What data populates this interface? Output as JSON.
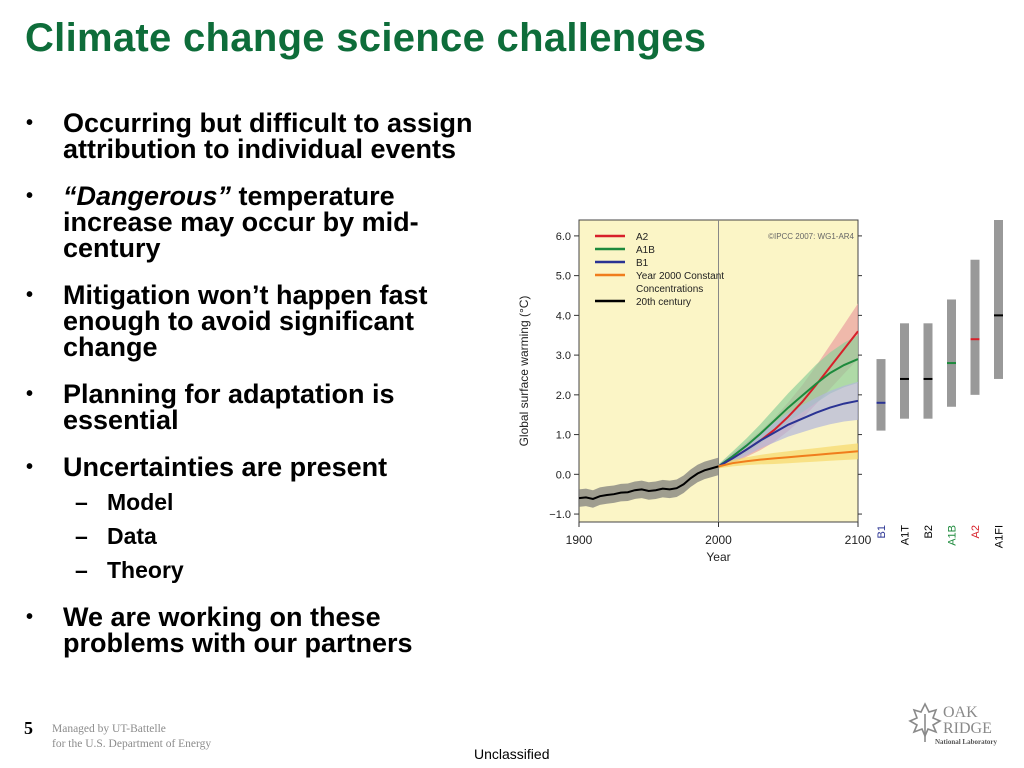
{
  "slide": {
    "title": "Climate change science challenges",
    "bullets": [
      {
        "lines": [
          "Occurring but difficult to assign",
          "attribution to  individual events"
        ]
      },
      {
        "emph": "“Dangerous”",
        "lines": [
          " temperature",
          "increase may occur by mid-",
          "century"
        ]
      },
      {
        "lines": [
          "Mitigation won’t happen fast",
          "enough to avoid significant",
          "change"
        ]
      },
      {
        "lines": [
          "Planning for adaptation is",
          "essential"
        ]
      },
      {
        "lines": [
          "Uncertainties are present"
        ]
      },
      {
        "lines": [
          "We are working on these",
          "problems with our partners"
        ]
      }
    ],
    "sub_bullets": [
      "Model",
      "Data",
      "Theory"
    ],
    "bullet_glyph": "•",
    "dash_glyph": "–"
  },
  "footer": {
    "page_number": "5",
    "managed_line1": "Managed by UT-Battelle",
    "managed_line2": "for the U.S. Department of Energy",
    "classification": "Unclassified",
    "logo_text_oak": "OAK",
    "logo_text_ridge": "RIDGE",
    "logo_text_lab": "National Laboratory"
  },
  "chart_data": {
    "type": "line",
    "xlabel": "Year",
    "ylabel": "Global surface warming (°C)",
    "xlim": [
      1900,
      2100
    ],
    "ylim": [
      -1.2,
      6.4
    ],
    "xticks": [
      1900,
      2000,
      2100
    ],
    "yticks": [
      -1.0,
      0.0,
      1.0,
      2.0,
      3.0,
      4.0,
      5.0,
      6.0
    ],
    "ytick_labels": [
      "−1.0",
      "0.0",
      "1.0",
      "2.0",
      "3.0",
      "4.0",
      "5.0",
      "6.0"
    ],
    "credit": "©IPCC  2007: WG1-AR4",
    "background": "#fbf5c6",
    "vline_year": 2000,
    "legend": [
      {
        "name": "A2",
        "color": "#d7202a"
      },
      {
        "name": "A1B",
        "color": "#1d8a3c"
      },
      {
        "name": "B1",
        "color": "#2a3393"
      },
      {
        "name": "Year 2000 Constant Concentrations",
        "label_lines": [
          "Year 2000 Constant",
          "Concentrations"
        ],
        "color": "#f07d1c"
      },
      {
        "name": "20th century",
        "color": "#000000"
      }
    ],
    "series": [
      {
        "name": "20th century",
        "color": "#000000",
        "band": "#777777",
        "x": [
          1900,
          1905,
          1910,
          1915,
          1920,
          1925,
          1930,
          1935,
          1940,
          1945,
          1950,
          1955,
          1960,
          1965,
          1970,
          1975,
          1980,
          1985,
          1990,
          1995,
          2000
        ],
        "y": [
          -0.6,
          -0.58,
          -0.62,
          -0.55,
          -0.52,
          -0.5,
          -0.46,
          -0.45,
          -0.4,
          -0.38,
          -0.42,
          -0.4,
          -0.36,
          -0.38,
          -0.35,
          -0.25,
          -0.1,
          0.02,
          0.1,
          0.15,
          0.2
        ],
        "spread": 0.22
      },
      {
        "name": "A2",
        "color": "#d7202a",
        "band": "#eaa0a0",
        "x": [
          2000,
          2010,
          2020,
          2030,
          2040,
          2050,
          2060,
          2070,
          2080,
          2090,
          2100
        ],
        "y": [
          0.2,
          0.4,
          0.62,
          0.85,
          1.12,
          1.45,
          1.82,
          2.25,
          2.7,
          3.15,
          3.6
        ],
        "spread": [
          0.05,
          0.12,
          0.18,
          0.24,
          0.3,
          0.36,
          0.42,
          0.48,
          0.55,
          0.62,
          0.7
        ]
      },
      {
        "name": "A1B",
        "color": "#1d8a3c",
        "band": "#8fcf9a",
        "x": [
          2000,
          2010,
          2020,
          2030,
          2040,
          2050,
          2060,
          2070,
          2080,
          2090,
          2100
        ],
        "y": [
          0.2,
          0.45,
          0.72,
          1.02,
          1.35,
          1.68,
          1.98,
          2.28,
          2.55,
          2.75,
          2.9
        ],
        "spread": [
          0.05,
          0.12,
          0.18,
          0.24,
          0.3,
          0.36,
          0.42,
          0.48,
          0.52,
          0.56,
          0.6
        ]
      },
      {
        "name": "B1",
        "color": "#2a3393",
        "band": "#b2b7dc",
        "x": [
          2000,
          2010,
          2020,
          2030,
          2040,
          2050,
          2060,
          2070,
          2080,
          2090,
          2100
        ],
        "y": [
          0.2,
          0.4,
          0.62,
          0.85,
          1.05,
          1.25,
          1.4,
          1.55,
          1.68,
          1.78,
          1.85
        ],
        "spread": [
          0.05,
          0.1,
          0.15,
          0.2,
          0.25,
          0.3,
          0.34,
          0.38,
          0.42,
          0.45,
          0.48
        ]
      },
      {
        "name": "Year 2000 Constant Concentrations",
        "color": "#f07d1c",
        "band": "#f6d86a",
        "x": [
          2000,
          2010,
          2020,
          2030,
          2040,
          2050,
          2060,
          2070,
          2080,
          2090,
          2100
        ],
        "y": [
          0.2,
          0.28,
          0.33,
          0.37,
          0.4,
          0.43,
          0.46,
          0.49,
          0.52,
          0.55,
          0.58
        ],
        "spread": [
          0.05,
          0.08,
          0.1,
          0.12,
          0.14,
          0.15,
          0.16,
          0.17,
          0.18,
          0.19,
          0.2
        ]
      }
    ],
    "likely_ranges": [
      {
        "name": "B1",
        "low": 1.1,
        "high": 2.9,
        "best": 1.8,
        "best_color": "#2a3393",
        "label_color": "#2a3393"
      },
      {
        "name": "A1T",
        "low": 1.4,
        "high": 3.8,
        "best": 2.4,
        "best_color": "#000000",
        "label_color": "#000000"
      },
      {
        "name": "B2",
        "low": 1.4,
        "high": 3.8,
        "best": 2.4,
        "best_color": "#000000",
        "label_color": "#000000"
      },
      {
        "name": "A1B",
        "low": 1.7,
        "high": 4.4,
        "best": 2.8,
        "best_color": "#1d8a3c",
        "label_color": "#1d8a3c"
      },
      {
        "name": "A2",
        "low": 2.0,
        "high": 5.4,
        "best": 3.4,
        "best_color": "#d7202a",
        "label_color": "#d7202a"
      },
      {
        "name": "A1FI",
        "low": 2.4,
        "high": 6.4,
        "best": 4.0,
        "best_color": "#000000",
        "label_color": "#000000"
      }
    ]
  }
}
